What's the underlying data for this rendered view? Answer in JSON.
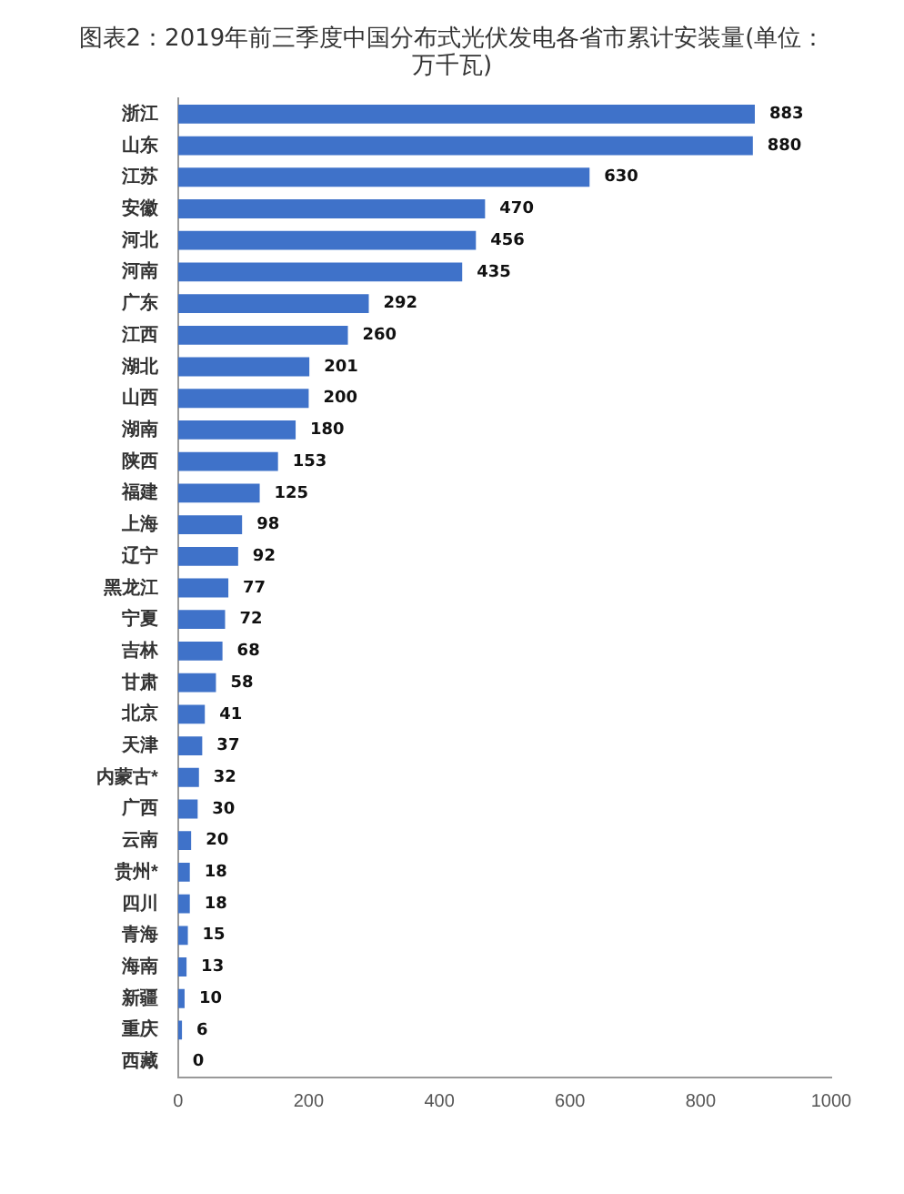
{
  "chart_data": {
    "type": "bar",
    "orientation": "horizontal",
    "title": "图表2：2019年前三季度中国分布式光伏发电各省市累计安装量(单位：万千瓦)",
    "categories": [
      "浙江",
      "山东",
      "江苏",
      "安徽",
      "河北",
      "河南",
      "广东",
      "江西",
      "湖北",
      "山西",
      "湖南",
      "陕西",
      "福建",
      "上海",
      "辽宁",
      "黑龙江",
      "宁夏",
      "吉林",
      "甘肃",
      "北京",
      "天津",
      "内蒙古*",
      "广西",
      "云南",
      "贵州*",
      "四川",
      "青海",
      "海南",
      "新疆",
      "重庆",
      "西藏"
    ],
    "values": [
      883,
      880,
      630,
      470,
      456,
      435,
      292,
      260,
      201,
      200,
      180,
      153,
      125,
      98,
      92,
      77,
      72,
      68,
      58,
      41,
      37,
      32,
      30,
      20,
      18,
      18,
      15,
      13,
      10,
      6,
      0
    ],
    "color": "#3f72c9",
    "xlim": [
      0,
      1000
    ],
    "xticks": [
      0,
      200,
      400,
      600,
      800,
      1000
    ],
    "grid": false,
    "legend": false,
    "data_labels": true
  }
}
